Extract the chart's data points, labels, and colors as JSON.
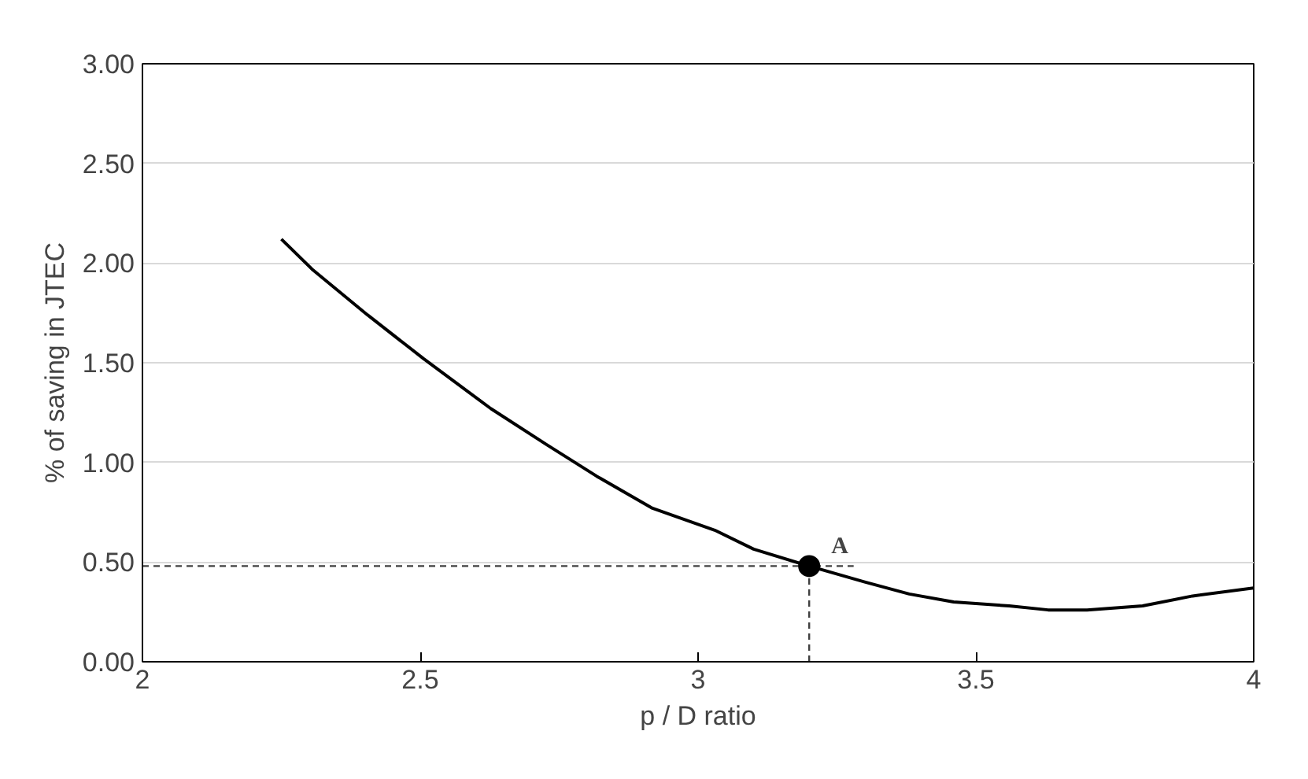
{
  "chart_data": {
    "type": "line",
    "xlabel": "p / D ratio",
    "ylabel": "% of saving in JTEC",
    "xlim": [
      2,
      4
    ],
    "xticks": [
      2,
      2.5,
      3,
      3.5,
      4
    ],
    "ylim": [
      0,
      3
    ],
    "yticks": [
      {
        "value": 0,
        "label": "0.00"
      },
      {
        "value": 0.5,
        "label": "0.50"
      },
      {
        "value": 1,
        "label": "1.00"
      },
      {
        "value": 1.5,
        "label": "1.50"
      },
      {
        "value": 2,
        "label": "2.00"
      },
      {
        "value": 2.5,
        "label": "2.50"
      },
      {
        "value": 3,
        "label": "3.00"
      }
    ],
    "grid": "y",
    "series": [
      {
        "color": "#000000",
        "line_style": "solid",
        "marker": "none",
        "x": [
          2.25,
          2.305,
          2.405,
          2.506,
          2.627,
          2.727,
          2.818,
          2.918,
          3.03,
          3.1,
          3.2,
          3.3,
          3.38,
          3.46,
          3.56,
          3.63,
          3.7,
          3.8,
          3.89,
          4.0
        ],
        "values": [
          2.12,
          1.97,
          1.74,
          1.52,
          1.27,
          1.09,
          0.93,
          0.77,
          0.66,
          0.565,
          0.48,
          0.4,
          0.34,
          0.3,
          0.28,
          0.26,
          0.26,
          0.28,
          0.33,
          0.37
        ]
      },
      {
        "type": "scatter",
        "color": "#000000",
        "marker": "circle",
        "x": [
          3.2
        ],
        "values": [
          0.48
        ]
      }
    ],
    "ref_lines": [
      {
        "axis": "x",
        "value": 3.2,
        "line_style": "dashed",
        "color": "#404040"
      },
      {
        "axis": "y",
        "value": 0.48,
        "line_style": "dashed",
        "color": "#404040"
      }
    ],
    "annotations": [
      {
        "text": "A",
        "x": 3.2,
        "y": 0.48
      }
    ]
  }
}
